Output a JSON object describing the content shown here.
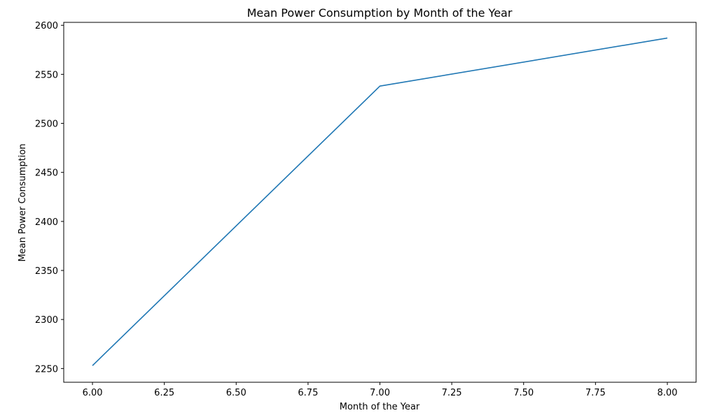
{
  "chart_data": {
    "type": "line",
    "title": "Mean Power Consumption by Month of the Year",
    "xlabel": "Month of the Year",
    "ylabel": "Mean Power Consumption",
    "xlim": [
      5.9,
      8.1
    ],
    "ylim": [
      2236,
      2603
    ],
    "x_ticks": [
      "6.00",
      "6.25",
      "6.50",
      "6.75",
      "7.00",
      "7.25",
      "7.50",
      "7.75",
      "8.00"
    ],
    "y_ticks": [
      "2250",
      "2300",
      "2350",
      "2400",
      "2450",
      "2500",
      "2550",
      "2600"
    ],
    "grid": false,
    "series": [
      {
        "color": "#1f77b4",
        "x": [
          6,
          7,
          8
        ],
        "y": [
          2253,
          2538,
          2587
        ]
      }
    ]
  }
}
